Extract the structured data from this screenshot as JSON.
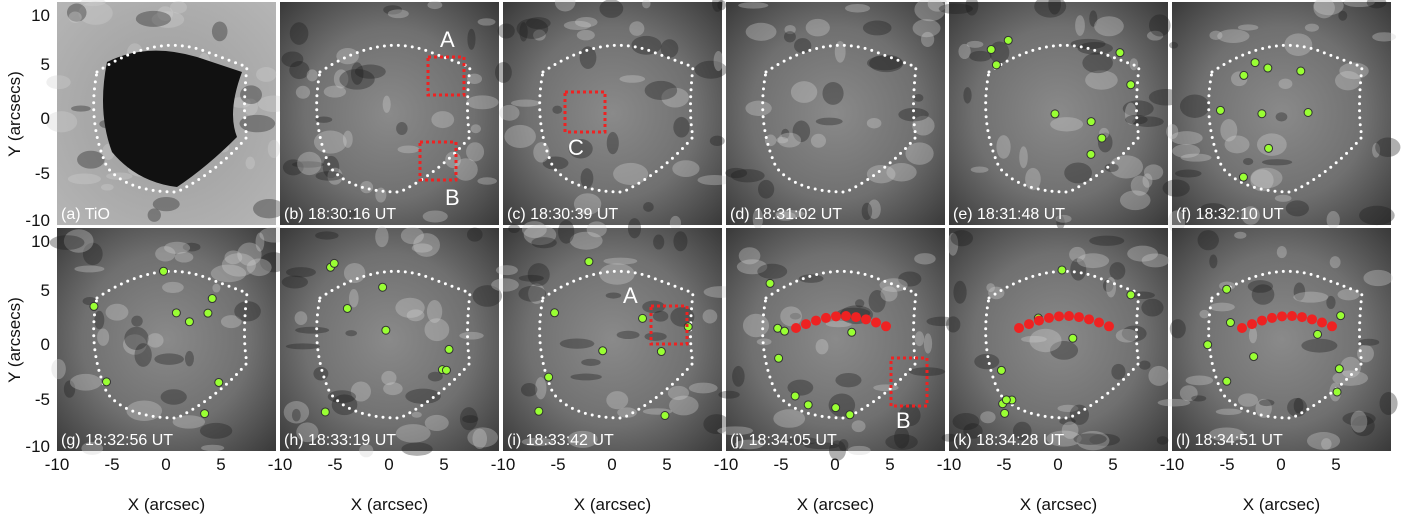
{
  "figure": {
    "panels": [
      {
        "label": "(a) TiO"
      },
      {
        "label": "(b) 18:30:16 UT",
        "annotations": [
          "A",
          "B"
        ]
      },
      {
        "label": "(c) 18:30:39 UT",
        "annotations": [
          "C"
        ]
      },
      {
        "label": "(d) 18:31:02 UT"
      },
      {
        "label": "(e) 18:31:48 UT"
      },
      {
        "label": "(f) 18:32:10 UT"
      },
      {
        "label": "(g) 18:32:56 UT"
      },
      {
        "label": "(h) 18:33:19 UT"
      },
      {
        "label": "(i) 18:33:42 UT",
        "annotations": [
          "A"
        ]
      },
      {
        "label": "(j) 18:34:05 UT",
        "annotations": [
          "B"
        ]
      },
      {
        "label": "(k) 18:34:28 UT"
      },
      {
        "label": "(l) 18:34:51 UT"
      }
    ],
    "x_axis": {
      "label": "X (arcsec)",
      "ticks": [
        "-10",
        "-5",
        "0",
        "5"
      ]
    },
    "y_axis": {
      "label": "Y (arcsecs)",
      "ticks": [
        "10",
        "5",
        "0",
        "-5",
        "-10"
      ]
    }
  }
}
